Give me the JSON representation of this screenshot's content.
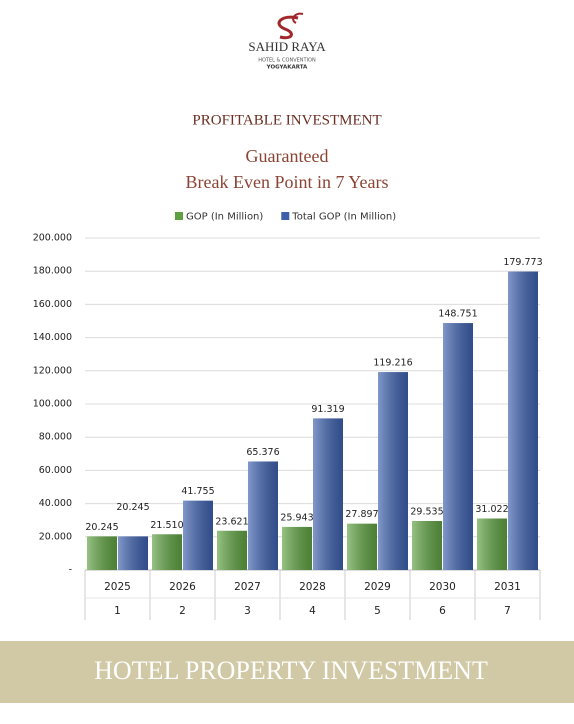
{
  "brand": {
    "name": "SAHID RAYA",
    "line1": "HOTEL & CONVENTION",
    "line2": "YOGYAKARTA"
  },
  "heading": "PROFITABLE INVESTMENT",
  "subheading": [
    "Guaranteed",
    "Break Even Point in 7 Years"
  ],
  "footer": "HOTEL PROPERTY INVESTMENT",
  "chart_data": {
    "type": "bar",
    "categories": [
      "2025",
      "2026",
      "2027",
      "2028",
      "2029",
      "2030",
      "2031"
    ],
    "sub_categories": [
      "1",
      "2",
      "3",
      "4",
      "5",
      "6",
      "7"
    ],
    "series": [
      {
        "name": "GOP (In Million)",
        "color": "#5fa142",
        "values": [
          20245,
          21510,
          23621,
          25943,
          27897,
          29535,
          31022
        ],
        "value_labels": [
          "20.245",
          "21.510",
          "23.621",
          "25.943",
          "27.897",
          "29.535",
          "31.022"
        ]
      },
      {
        "name": "Total GOP (In Million)",
        "color": "#3d60ad",
        "values": [
          20245,
          41755,
          65376,
          91319,
          119216,
          148751,
          179773
        ],
        "value_labels": [
          "20.245",
          "41.755",
          "65.376",
          "91.319",
          "119.216",
          "148.751",
          "179.773"
        ]
      }
    ],
    "ylim": [
      0,
      200000
    ],
    "yticks": [
      {
        "value": 0,
        "label": "-"
      },
      {
        "value": 20000,
        "label": "20.000"
      },
      {
        "value": 40000,
        "label": "40.000"
      },
      {
        "value": 60000,
        "label": "60.000"
      },
      {
        "value": 80000,
        "label": "80.000"
      },
      {
        "value": 100000,
        "label": "100.000"
      },
      {
        "value": 120000,
        "label": "120.000"
      },
      {
        "value": 140000,
        "label": "140.000"
      },
      {
        "value": 160000,
        "label": "160.000"
      },
      {
        "value": 180000,
        "label": "180.000"
      },
      {
        "value": 200000,
        "label": "200.000"
      }
    ],
    "grid": true,
    "legend": "top"
  }
}
